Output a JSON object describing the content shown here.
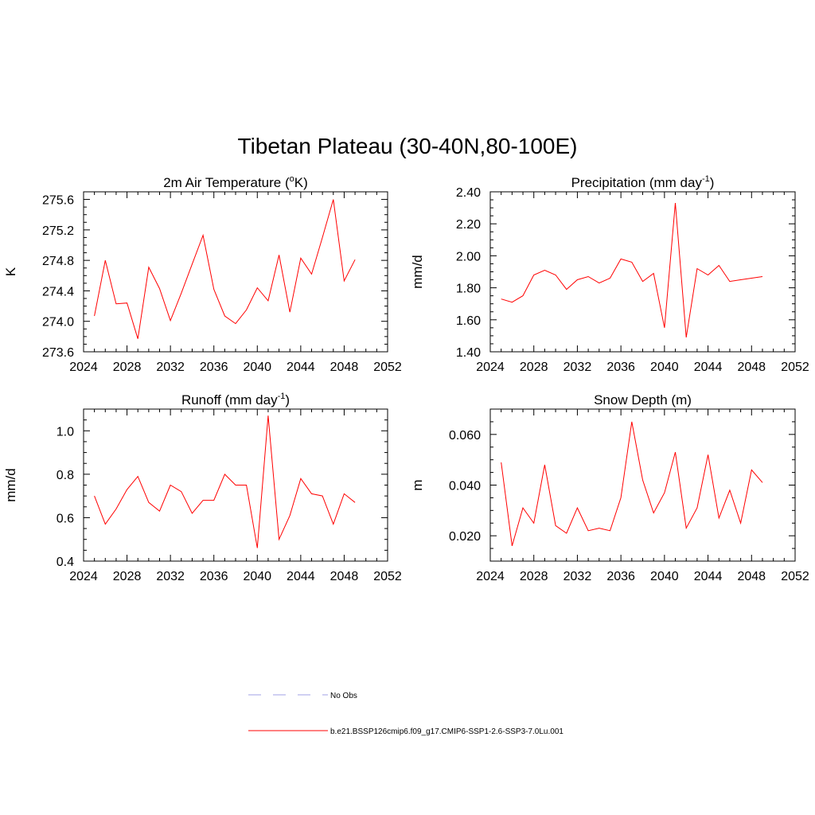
{
  "title": "Tibetan Plateau (30-40N,80-100E)",
  "colors": {
    "series": "#ff0000",
    "noobs": "#a0a0e6",
    "axis": "#000000"
  },
  "legend": {
    "placement": "bottom-center",
    "items": [
      {
        "label": "No Obs",
        "style": "dashed",
        "color": "#a0a0e6"
      },
      {
        "label": "b.e21.BSSP126cmip6.f09_g17.CMIP6-SSP1-2.6-SSP3-7.0Lu.001",
        "style": "solid",
        "color": "#ff0000"
      }
    ]
  },
  "chart_data": [
    {
      "type": "line",
      "title_main": "2m Air Temperature (",
      "title_sup": "o",
      "title_end": "K)",
      "ylabel": "K",
      "xlim": [
        2024,
        2052
      ],
      "xticks": [
        "2024",
        "2028",
        "2032",
        "2036",
        "2040",
        "2044",
        "2048",
        "2052"
      ],
      "ylim": [
        273.6,
        275.7
      ],
      "yticks": [
        "273.6",
        "274.0",
        "274.4",
        "274.8",
        "275.2",
        "275.6"
      ],
      "x": [
        2025,
        2026,
        2027,
        2028,
        2029,
        2030,
        2031,
        2032,
        2033,
        2034,
        2035,
        2036,
        2037,
        2038,
        2039,
        2040,
        2041,
        2042,
        2043,
        2044,
        2045,
        2046,
        2047,
        2048,
        2049
      ],
      "series": [
        {
          "values": [
            274.07,
            274.8,
            274.23,
            274.24,
            273.77,
            274.71,
            274.43,
            274.01,
            274.37,
            274.75,
            275.13,
            274.42,
            274.07,
            273.97,
            274.15,
            274.44,
            274.27,
            274.87,
            274.12,
            274.83,
            274.62,
            275.1,
            275.6,
            274.53,
            274.81
          ]
        }
      ]
    },
    {
      "type": "line",
      "title_main": "Precipitation (mm day",
      "title_sup": "-1",
      "title_end": ")",
      "ylabel": "mm/d",
      "xlim": [
        2024,
        2052
      ],
      "xticks": [
        "2024",
        "2028",
        "2032",
        "2036",
        "2040",
        "2044",
        "2048",
        "2052"
      ],
      "ylim": [
        1.4,
        2.4
      ],
      "yticks": [
        "1.40",
        "1.60",
        "1.80",
        "2.00",
        "2.20",
        "2.40"
      ],
      "x": [
        2025,
        2026,
        2027,
        2028,
        2029,
        2030,
        2031,
        2032,
        2033,
        2034,
        2035,
        2036,
        2037,
        2038,
        2039,
        2040,
        2041,
        2042,
        2043,
        2044,
        2045,
        2046,
        2047,
        2048,
        2049
      ],
      "series": [
        {
          "values": [
            1.73,
            1.71,
            1.75,
            1.88,
            1.91,
            1.88,
            1.79,
            1.85,
            1.87,
            1.83,
            1.86,
            1.98,
            1.96,
            1.84,
            1.89,
            1.55,
            2.33,
            1.49,
            1.92,
            1.88,
            1.94,
            1.84,
            1.85,
            1.86,
            1.87
          ]
        }
      ]
    },
    {
      "type": "line",
      "title_main": "Runoff (mm day",
      "title_sup": "-1",
      "title_end": ")",
      "ylabel": "mm/d",
      "xlim": [
        2024,
        2052
      ],
      "xticks": [
        "2024",
        "2028",
        "2032",
        "2036",
        "2040",
        "2044",
        "2048",
        "2052"
      ],
      "ylim": [
        0.4,
        1.1
      ],
      "yticks": [
        "0.4",
        "0.6",
        "0.8",
        "1.0"
      ],
      "x": [
        2025,
        2026,
        2027,
        2028,
        2029,
        2030,
        2031,
        2032,
        2033,
        2034,
        2035,
        2036,
        2037,
        2038,
        2039,
        2040,
        2041,
        2042,
        2043,
        2044,
        2045,
        2046,
        2047,
        2048,
        2049
      ],
      "series": [
        {
          "values": [
            0.7,
            0.57,
            0.64,
            0.73,
            0.79,
            0.67,
            0.63,
            0.75,
            0.72,
            0.62,
            0.68,
            0.68,
            0.8,
            0.75,
            0.75,
            0.46,
            1.07,
            0.5,
            0.61,
            0.78,
            0.71,
            0.7,
            0.57,
            0.71,
            0.67
          ]
        }
      ]
    },
    {
      "type": "line",
      "title_main": "Snow Depth (m)",
      "title_sup": "",
      "title_end": "",
      "ylabel": "m",
      "xlim": [
        2024,
        2052
      ],
      "xticks": [
        "2024",
        "2028",
        "2032",
        "2036",
        "2040",
        "2044",
        "2048",
        "2052"
      ],
      "ylim": [
        0.01,
        0.07
      ],
      "yticks": [
        "0.020",
        "0.040",
        "0.060"
      ],
      "ytick_values": [
        0.02,
        0.04,
        0.06
      ],
      "x": [
        2025,
        2026,
        2027,
        2028,
        2029,
        2030,
        2031,
        2032,
        2033,
        2034,
        2035,
        2036,
        2037,
        2038,
        2039,
        2040,
        2041,
        2042,
        2043,
        2044,
        2045,
        2046,
        2047,
        2048,
        2049
      ],
      "series": [
        {
          "values": [
            0.049,
            0.016,
            0.031,
            0.025,
            0.048,
            0.024,
            0.021,
            0.031,
            0.022,
            0.023,
            0.022,
            0.035,
            0.065,
            0.042,
            0.029,
            0.037,
            0.053,
            0.023,
            0.031,
            0.052,
            0.027,
            0.038,
            0.025,
            0.046,
            0.041
          ]
        }
      ]
    }
  ]
}
